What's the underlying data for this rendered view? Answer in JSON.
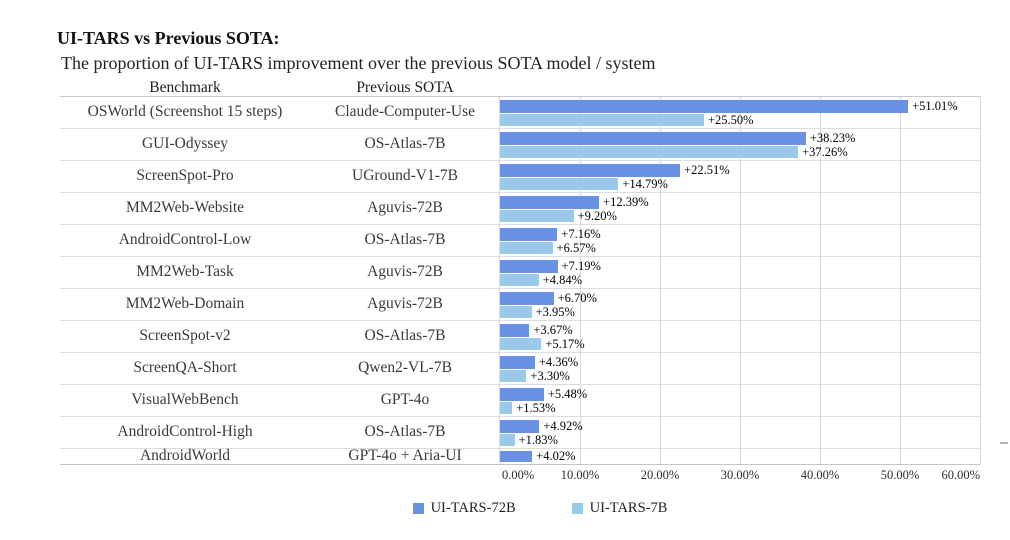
{
  "title": "UI-TARS vs Previous SOTA:",
  "subtitle": "The proportion of UI-TARS improvement over the previous SOTA model / system",
  "table": {
    "benchmark_header": "Benchmark",
    "previous_sota_header": "Previous SOTA"
  },
  "colors": {
    "bar_72b": "#6A92E4",
    "bar_7b": "#9ACAEA",
    "grid_line": "#DADADA",
    "row_line": "#DCDCDC",
    "header_line": "#C8C8C8",
    "axis_line": "#C4C4C4"
  },
  "x_axis": {
    "tick_labels": [
      "0.00%",
      "10.00%",
      "20.00%",
      "30.00%",
      "40.00%",
      "50.00%",
      "60.00%"
    ],
    "min": 0,
    "max": 60
  },
  "legend": {
    "items": [
      {
        "label": "UI-TARS-72B",
        "color_key": "bar_72b"
      },
      {
        "label": "UI-TARS-7B",
        "color_key": "bar_7b"
      }
    ]
  },
  "chart_data": {
    "type": "bar",
    "orientation": "horizontal",
    "title": "UI-TARS vs Previous SOTA:",
    "subtitle": "The proportion of UI-TARS improvement over the previous SOTA model / system",
    "xlabel": "",
    "ylabel": "",
    "xlim": [
      0,
      60
    ],
    "x_tick_format": "percent",
    "grid": "vertical",
    "legend_position": "bottom",
    "categories": [
      "OSWorld (Screenshot 15 steps)",
      "GUI-Odyssey",
      "ScreenSpot-Pro",
      "MM2Web-Website",
      "AndroidControl-Low",
      "MM2Web-Task",
      "MM2Web-Domain",
      "ScreenSpot-v2",
      "ScreenQA-Short",
      "VisualWebBench",
      "AndroidControl-High",
      "AndroidWorld"
    ],
    "previous_sota": [
      "Claude-Computer-Use",
      "OS-Atlas-7B",
      "UGround-V1-7B",
      "Aguvis-72B",
      "OS-Atlas-7B",
      "Aguvis-72B",
      "Aguvis-72B",
      "OS-Atlas-7B",
      "Qwen2-VL-7B",
      "GPT-4o",
      "OS-Atlas-7B",
      "GPT-4o + Aria-UI"
    ],
    "series": [
      {
        "name": "UI-TARS-72B",
        "color": "#6A92E4",
        "values": [
          51.01,
          38.23,
          22.51,
          12.39,
          7.16,
          7.19,
          6.7,
          3.67,
          4.36,
          5.48,
          4.92,
          4.02
        ],
        "labels": [
          "+51.01%",
          "+38.23%",
          "+22.51%",
          "+12.39%",
          "+7.16%",
          "+7.19%",
          "+6.70%",
          "+3.67%",
          "+4.36%",
          "+5.48%",
          "+4.92%",
          "+4.02%"
        ]
      },
      {
        "name": "UI-TARS-7B",
        "color": "#9ACAEA",
        "values": [
          25.5,
          37.26,
          14.79,
          9.2,
          6.57,
          4.84,
          3.95,
          5.17,
          3.3,
          1.53,
          1.83,
          null
        ],
        "labels": [
          "+25.50%",
          "+37.26%",
          "+14.79%",
          "+9.20%",
          "+6.57%",
          "+4.84%",
          "+3.95%",
          "+5.17%",
          "+3.30%",
          "+1.53%",
          "+1.83%",
          null
        ]
      }
    ]
  }
}
